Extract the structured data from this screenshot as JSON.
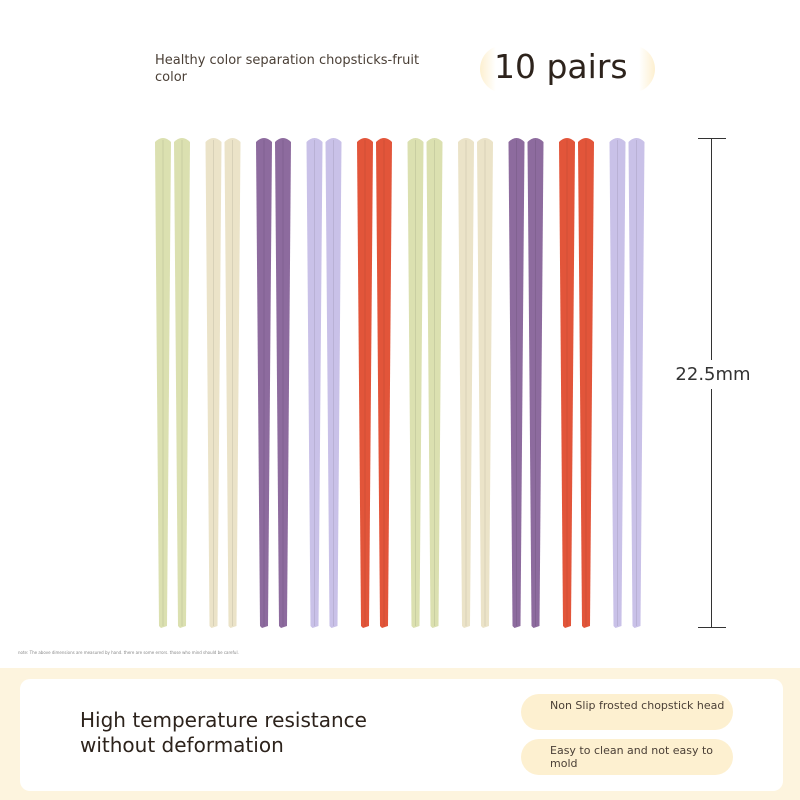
{
  "header": {
    "title": "Healthy color separation chopsticks-fruit color",
    "quantity": "10 pairs"
  },
  "dimension": {
    "label": "22.5mm"
  },
  "note": "note: The above dimensions are measured by hand. there are some errors. those who mind should be careful.",
  "chopstick_colors": [
    "#dbe0b0",
    "#ebe3c8",
    "#8d6b9e",
    "#c9c1e8",
    "#e2553a",
    "#dbe0b0",
    "#ebe3c8",
    "#8d6b9e",
    "#e2553a",
    "#c9c1e8"
  ],
  "features": {
    "main": "High temperature resistance without deformation",
    "pills": [
      "Non Slip frosted chopstick head",
      "Easy to clean and not easy to mold"
    ]
  }
}
